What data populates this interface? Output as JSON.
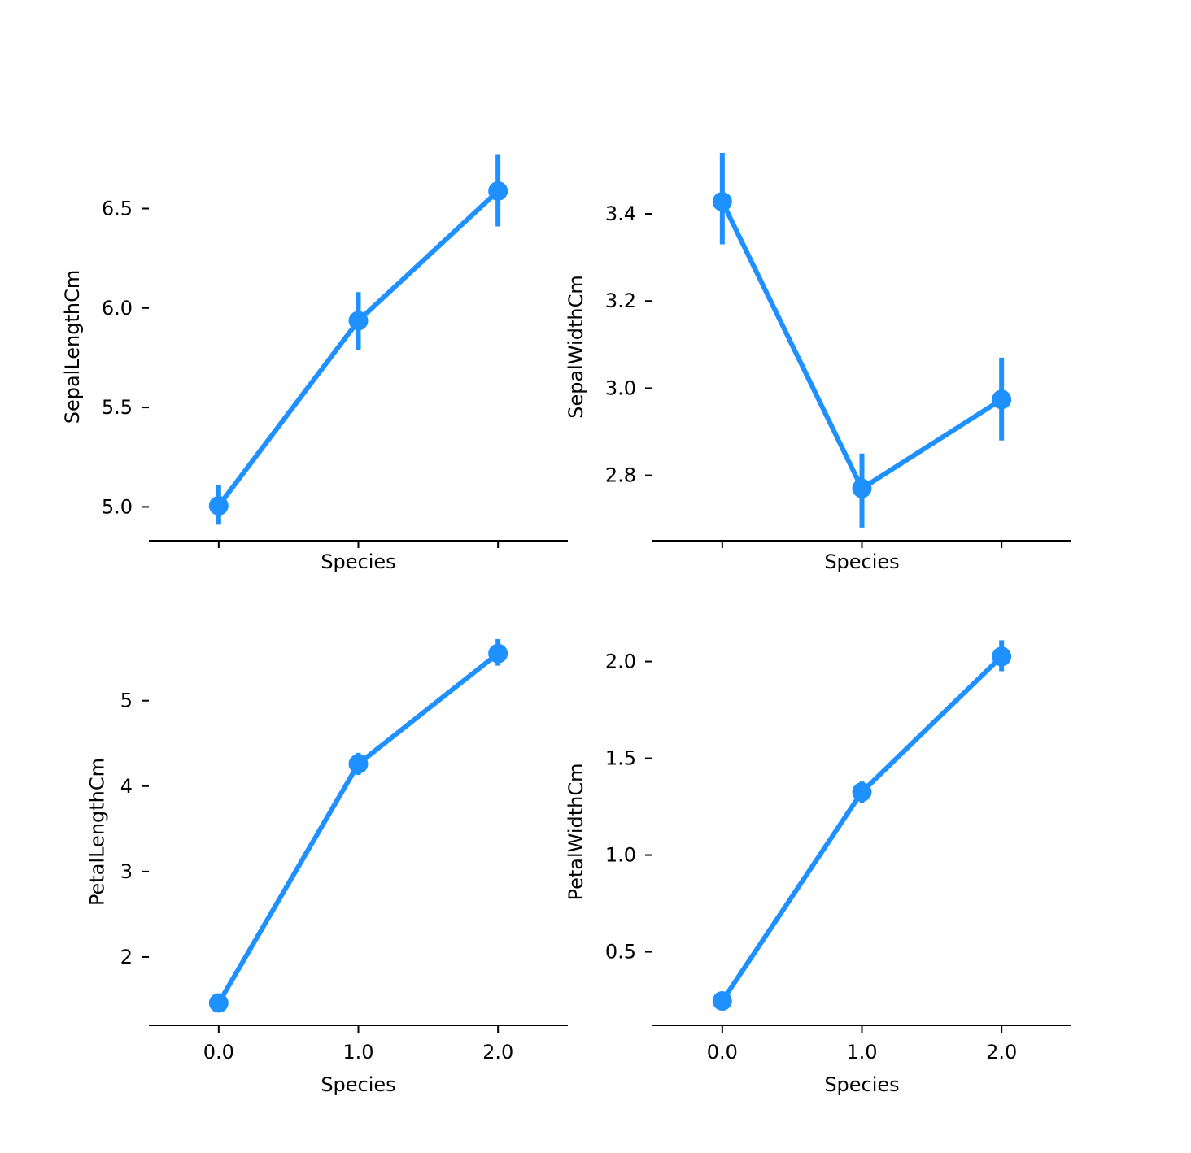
{
  "chart_data": [
    {
      "type": "point",
      "xlabel": "Species",
      "ylabel": "SepalLengthCm",
      "x": [
        0.0,
        1.0,
        2.0
      ],
      "y": [
        5.006,
        5.936,
        6.588
      ],
      "error_low": [
        4.91,
        5.79,
        6.41
      ],
      "error_high": [
        5.11,
        6.08,
        6.77
      ],
      "xlim": [
        -0.5,
        2.5
      ],
      "ylim": [
        4.83,
        6.78
      ],
      "xticks": [],
      "yticks": [
        5.0,
        5.5,
        6.0,
        6.5
      ],
      "ytick_labels": [
        "5.0",
        "5.5",
        "6.0",
        "6.5"
      ]
    },
    {
      "type": "point",
      "xlabel": "Species",
      "ylabel": "SepalWidthCm",
      "x": [
        0.0,
        1.0,
        2.0
      ],
      "y": [
        3.428,
        2.77,
        2.974
      ],
      "error_low": [
        3.33,
        2.68,
        2.88
      ],
      "error_high": [
        3.54,
        2.85,
        3.07
      ],
      "xlim": [
        -0.5,
        2.5
      ],
      "ylim": [
        2.65,
        3.54
      ],
      "xticks": [],
      "yticks": [
        2.8,
        3.0,
        3.2,
        3.4
      ],
      "ytick_labels": [
        "2.8",
        "3.0",
        "3.2",
        "3.4"
      ]
    },
    {
      "type": "point",
      "xlabel": "Species",
      "ylabel": "PetalLengthCm",
      "x": [
        0.0,
        1.0,
        2.0
      ],
      "y": [
        1.462,
        4.26,
        5.552
      ],
      "error_low": [
        1.42,
        4.13,
        5.41
      ],
      "error_high": [
        1.51,
        4.39,
        5.72
      ],
      "xlim": [
        -0.5,
        2.5
      ],
      "ylim": [
        1.2,
        5.73
      ],
      "xticks": [
        0.0,
        1.0,
        2.0
      ],
      "xtick_labels": [
        "0.0",
        "1.0",
        "2.0"
      ],
      "yticks": [
        2,
        3,
        4,
        5
      ],
      "ytick_labels": [
        "2",
        "3",
        "4",
        "5"
      ]
    },
    {
      "type": "point",
      "xlabel": "Species",
      "ylabel": "PetalWidthCm",
      "x": [
        0.0,
        1.0,
        2.0
      ],
      "y": [
        0.246,
        1.326,
        2.026
      ],
      "error_low": [
        0.22,
        1.27,
        1.95
      ],
      "error_high": [
        0.27,
        1.38,
        2.11
      ],
      "xlim": [
        -0.5,
        2.5
      ],
      "ylim": [
        0.12,
        2.12
      ],
      "xticks": [
        0.0,
        1.0,
        2.0
      ],
      "xtick_labels": [
        "0.0",
        "1.0",
        "2.0"
      ],
      "yticks": [
        0.5,
        1.0,
        1.5,
        2.0
      ],
      "ytick_labels": [
        "0.5",
        "1.0",
        "1.5",
        "2.0"
      ]
    }
  ],
  "style": {
    "series_color": "#1e90ff",
    "axis_color": "#000000",
    "background": "#ffffff",
    "grid": false,
    "legend": false
  }
}
